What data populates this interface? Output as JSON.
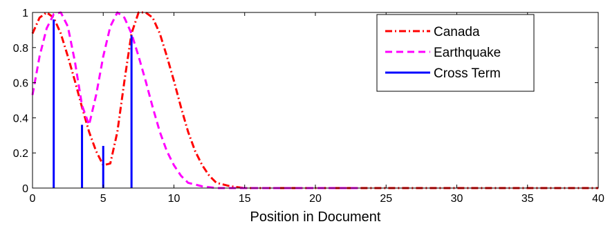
{
  "chart_data": {
    "type": "line",
    "title": "",
    "xlabel": "Position in Document",
    "ylabel": "",
    "xlim": [
      0,
      40
    ],
    "ylim": [
      0,
      1
    ],
    "xticks": [
      0,
      5,
      10,
      15,
      20,
      25,
      30,
      35,
      40
    ],
    "yticks": [
      0,
      0.2,
      0.4,
      0.6,
      0.8,
      1
    ],
    "xtick_labels": [
      "0",
      "5",
      "10",
      "15",
      "20",
      "25",
      "30",
      "35",
      "40"
    ],
    "ytick_labels": [
      "0",
      "0.2",
      "0.4",
      "0.6",
      "0.8",
      "1"
    ],
    "grid": false,
    "legend_position": "top-right",
    "series": [
      {
        "name": "Canada",
        "style": "dash-dot",
        "color": "#ff0000",
        "x": [
          0,
          0.5,
          1,
          1.5,
          2,
          2.5,
          3,
          3.5,
          4,
          4.5,
          5,
          5.5,
          6,
          6.5,
          7,
          7.5,
          8,
          8.5,
          9,
          9.5,
          10,
          10.5,
          11,
          11.5,
          12,
          12.5,
          13,
          13.5,
          14,
          15,
          20,
          25,
          30,
          35,
          40
        ],
        "y": [
          0.88,
          0.97,
          1.0,
          0.97,
          0.88,
          0.75,
          0.61,
          0.46,
          0.32,
          0.21,
          0.13,
          0.14,
          0.32,
          0.61,
          0.88,
          1.0,
          1.0,
          0.97,
          0.88,
          0.75,
          0.61,
          0.46,
          0.32,
          0.21,
          0.13,
          0.07,
          0.03,
          0.02,
          0.01,
          0,
          0,
          0,
          0,
          0,
          0
        ]
      },
      {
        "name": "Earthquake",
        "style": "dashed",
        "color": "#ff00ff",
        "x": [
          0,
          0.5,
          1,
          1.5,
          2,
          2.5,
          3,
          3.5,
          4,
          4.5,
          5,
          5.5,
          6,
          6.5,
          7,
          7.5,
          8,
          8.5,
          9,
          9.5,
          10,
          10.5,
          11,
          11.5,
          12,
          13,
          14,
          15,
          20,
          23
        ],
        "y": [
          0.53,
          0.75,
          0.91,
          0.99,
          1.0,
          0.92,
          0.72,
          0.47,
          0.36,
          0.53,
          0.75,
          0.92,
          1.0,
          0.97,
          0.88,
          0.75,
          0.61,
          0.46,
          0.32,
          0.21,
          0.13,
          0.07,
          0.03,
          0.02,
          0.01,
          0,
          0,
          0,
          0,
          0
        ]
      },
      {
        "name": "Cross Term",
        "style": "stem",
        "color": "#0000ff",
        "x": [
          1.5,
          3.5,
          5,
          7
        ],
        "y": [
          0.96,
          0.36,
          0.24,
          0.87
        ]
      }
    ]
  }
}
